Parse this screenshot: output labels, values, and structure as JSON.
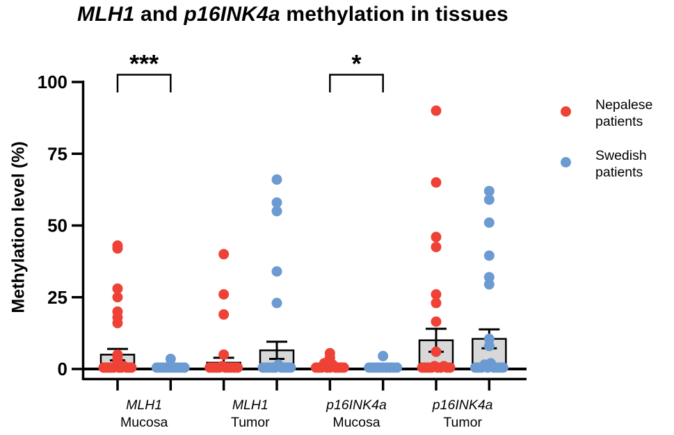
{
  "title": {
    "segments": [
      {
        "text": "MLH1",
        "italic": true
      },
      {
        "text": " and ",
        "italic": false
      },
      {
        "text": "p16INK4a",
        "italic": true
      },
      {
        "text": " methylation in tissues",
        "italic": false
      }
    ]
  },
  "colors": {
    "nepalese": "#EE4237",
    "swedish": "#6C9BD2",
    "bar_fill": "#D8D8D8",
    "axis": "#000000",
    "background": "#FFFFFF"
  },
  "legend": {
    "items": [
      {
        "series": "nepalese",
        "lines": [
          "Nepalese",
          "patients"
        ]
      },
      {
        "series": "swedish",
        "lines": [
          "Swedish",
          "patients"
        ]
      }
    ]
  },
  "chart_data": {
    "type": "bar",
    "subtype": "grouped bars (mean + SEM error bars) with overlaid scatter points",
    "title": "MLH1 and p16INK4a methylation in tissues",
    "ylabel": "Methylation level (%)",
    "ylim": [
      0,
      100
    ],
    "yticks": [
      0,
      25,
      50,
      75,
      100
    ],
    "grid": false,
    "legend_position": "right",
    "groups": [
      {
        "gene": "MLH1",
        "tissue": "Mucosa"
      },
      {
        "gene": "MLH1",
        "tissue": "Tumor"
      },
      {
        "gene": "p16INK4a",
        "tissue": "Mucosa"
      },
      {
        "gene": "p16INK4a",
        "tissue": "Tumor"
      }
    ],
    "series": [
      "Nepalese patients",
      "Swedish patients"
    ],
    "bars": [
      {
        "group": 0,
        "series": 0,
        "mean": 5,
        "sem": 2,
        "points": [
          43,
          42,
          28,
          25,
          20,
          18,
          16,
          5,
          4,
          2.5,
          0,
          0,
          0,
          0,
          0,
          1,
          0,
          0,
          1,
          0,
          0,
          0
        ]
      },
      {
        "group": 0,
        "series": 1,
        "mean": 0.7,
        "sem": null,
        "points": [
          3.5,
          0,
          0,
          0,
          0,
          0,
          0,
          0,
          0,
          0,
          0
        ]
      },
      {
        "group": 1,
        "series": 0,
        "mean": 2.2,
        "sem": 1.7,
        "points": [
          40,
          26,
          19,
          5,
          0,
          0,
          0,
          0,
          1,
          0,
          0,
          0,
          0,
          0
        ]
      },
      {
        "group": 1,
        "series": 1,
        "mean": 6.5,
        "sem": 3,
        "points": [
          66,
          58,
          55,
          34,
          23,
          0,
          0,
          0,
          0,
          0,
          1.5,
          0,
          0,
          0,
          0
        ]
      },
      {
        "group": 2,
        "series": 0,
        "mean": 0.7,
        "sem": null,
        "points": [
          5.5,
          4,
          0,
          0,
          0,
          2,
          0,
          0,
          1.5,
          0,
          0,
          0,
          0
        ]
      },
      {
        "group": 2,
        "series": 1,
        "mean": 0.6,
        "sem": null,
        "points": [
          4.5,
          0,
          0,
          0,
          0,
          0,
          0,
          0,
          0,
          0
        ]
      },
      {
        "group": 3,
        "series": 0,
        "mean": 10,
        "sem": 4,
        "points": [
          90,
          65,
          46,
          42.5,
          26,
          23,
          16.5,
          6,
          0,
          0,
          0,
          0,
          1,
          0,
          0,
          1,
          0,
          0
        ]
      },
      {
        "group": 3,
        "series": 1,
        "mean": 10.5,
        "sem": 3.3,
        "points": [
          62,
          59,
          51,
          39.5,
          32,
          29.5,
          10.5,
          8,
          0,
          0,
          0,
          1.5,
          0,
          2,
          0,
          0,
          0,
          0
        ]
      }
    ],
    "significance": [
      {
        "label": "***",
        "bars": [
          0,
          1
        ]
      },
      {
        "label": "*",
        "bars": [
          4,
          5
        ]
      }
    ]
  }
}
